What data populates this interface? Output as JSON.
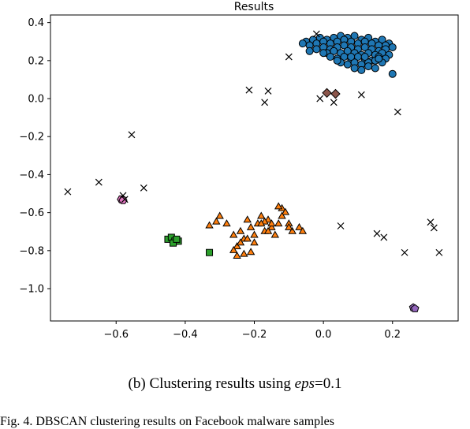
{
  "chart_data": {
    "type": "scatter",
    "title": "Results",
    "xlabel": "",
    "ylabel": "",
    "xlim": [
      -0.79,
      0.39
    ],
    "ylim": [
      -1.17,
      0.44
    ],
    "xticks": [
      -0.6,
      -0.4,
      -0.2,
      0.0,
      0.2
    ],
    "xtick_labels": [
      "−0.6",
      "−0.4",
      "−0.2",
      "0.0",
      "0.2"
    ],
    "yticks": [
      0.4,
      0.2,
      0.0,
      -0.2,
      -0.4,
      -0.6,
      -0.8,
      -1.0
    ],
    "ytick_labels": [
      "0.4",
      "0.2",
      "0.0",
      "−0.2",
      "−0.4",
      "−0.6",
      "−0.8",
      "−1.0"
    ],
    "grid": false,
    "series": [
      {
        "marker": "circle",
        "color": "#1f77b4",
        "x": [
          -0.05,
          -0.03,
          -0.01,
          0.01,
          0.03,
          0.05,
          0.07,
          0.09,
          0.11,
          0.13,
          0.15,
          0.17,
          0.19,
          -0.04,
          -0.02,
          0.0,
          0.02,
          0.04,
          0.06,
          0.08,
          0.1,
          0.12,
          0.14,
          0.16,
          0.18,
          0.2,
          -0.02,
          0.0,
          0.02,
          0.04,
          0.06,
          0.08,
          0.1,
          0.12,
          0.14,
          0.16,
          0.18,
          0.01,
          0.03,
          0.05,
          0.07,
          0.09,
          0.11,
          0.13,
          0.15,
          0.17,
          0.19,
          0.02,
          0.04,
          0.06,
          0.08,
          0.1,
          0.12,
          0.14,
          0.16,
          0.18,
          0.05,
          0.07,
          0.09,
          0.11,
          0.13,
          0.15,
          0.17,
          0.09,
          0.11,
          0.13,
          0.15,
          0.2,
          -0.04,
          0.0,
          0.04,
          0.08,
          0.12,
          0.16,
          -0.06
        ],
        "y": [
          0.3,
          0.31,
          0.32,
          0.31,
          0.32,
          0.33,
          0.32,
          0.33,
          0.31,
          0.32,
          0.3,
          0.31,
          0.29,
          0.28,
          0.29,
          0.3,
          0.29,
          0.3,
          0.31,
          0.3,
          0.29,
          0.3,
          0.29,
          0.28,
          0.28,
          0.27,
          0.26,
          0.27,
          0.26,
          0.27,
          0.28,
          0.27,
          0.26,
          0.27,
          0.26,
          0.25,
          0.26,
          0.24,
          0.25,
          0.24,
          0.25,
          0.24,
          0.23,
          0.24,
          0.23,
          0.24,
          0.23,
          0.22,
          0.21,
          0.22,
          0.21,
          0.22,
          0.21,
          0.2,
          0.22,
          0.21,
          0.19,
          0.18,
          0.19,
          0.18,
          0.19,
          0.2,
          0.19,
          0.16,
          0.15,
          0.17,
          0.16,
          0.13,
          0.25,
          0.24,
          0.2,
          0.22,
          0.22,
          0.21,
          0.29
        ]
      },
      {
        "marker": "triangle",
        "color": "#ff7f0e",
        "x": [
          -0.33,
          -0.31,
          -0.3,
          -0.28,
          -0.26,
          -0.25,
          -0.24,
          -0.23,
          -0.22,
          -0.21,
          -0.2,
          -0.19,
          -0.18,
          -0.17,
          -0.16,
          -0.15,
          -0.14,
          -0.13,
          -0.12,
          -0.11,
          -0.1,
          -0.09,
          -0.07,
          -0.06,
          -0.13,
          -0.15,
          -0.17,
          -0.21,
          -0.23,
          -0.25,
          -0.26,
          -0.24,
          -0.22,
          -0.2,
          -0.18,
          -0.16,
          -0.12,
          -0.1
        ],
        "y": [
          -0.67,
          -0.65,
          -0.62,
          -0.66,
          -0.72,
          -0.78,
          -0.7,
          -0.74,
          -0.64,
          -0.68,
          -0.72,
          -0.66,
          -0.62,
          -0.7,
          -0.64,
          -0.68,
          -0.72,
          -0.66,
          -0.58,
          -0.6,
          -0.66,
          -0.7,
          -0.68,
          -0.7,
          -0.57,
          -0.66,
          -0.65,
          -0.81,
          -0.82,
          -0.83,
          -0.8,
          -0.76,
          -0.74,
          -0.76,
          -0.66,
          -0.7,
          -0.62,
          -0.68
        ]
      },
      {
        "marker": "square",
        "color": "#2ca02c",
        "x": [
          -0.45,
          -0.44,
          -0.43,
          -0.42,
          -0.435,
          -0.425,
          -0.33
        ],
        "y": [
          -0.74,
          -0.73,
          -0.75,
          -0.75,
          -0.76,
          -0.74,
          -0.81
        ]
      },
      {
        "marker": "diamond",
        "color": "#8c564b",
        "x": [
          0.01,
          0.035
        ],
        "y": [
          0.03,
          0.025
        ]
      },
      {
        "marker": "pentagon",
        "color": "#9467bd",
        "x": [
          0.26,
          0.265
        ],
        "y": [
          -1.1,
          -1.105
        ]
      },
      {
        "marker": "hexagon",
        "color": "#e377c2",
        "x": [
          -0.585,
          -0.58
        ],
        "y": [
          -0.53,
          -0.535
        ]
      },
      {
        "marker": "x",
        "color": "#000000",
        "x": [
          -0.74,
          -0.65,
          -0.58,
          -0.555,
          -0.52,
          -0.575,
          -0.215,
          -0.17,
          -0.16,
          -0.1,
          -0.02,
          -0.01,
          0.03,
          0.11,
          0.215,
          0.05,
          0.155,
          0.175,
          0.235,
          0.31,
          0.32,
          0.335
        ],
        "y": [
          -0.49,
          -0.44,
          -0.51,
          -0.19,
          -0.47,
          -0.53,
          0.045,
          -0.02,
          0.04,
          0.22,
          0.34,
          0.0,
          -0.02,
          0.02,
          -0.07,
          -0.67,
          -0.71,
          -0.73,
          -0.81,
          -0.65,
          -0.68,
          -0.81
        ]
      }
    ]
  },
  "caption": {
    "prefix": "(b)  Clustering results using ",
    "eps_word": "eps",
    "suffix": "=0.1"
  },
  "figure_text": "Fig. 4.  DBSCAN clustering results on Facebook malware samples"
}
